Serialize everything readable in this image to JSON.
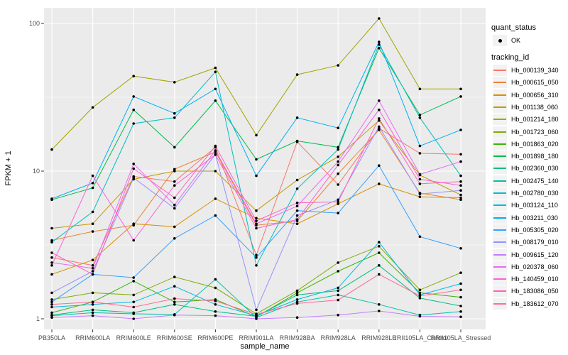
{
  "legend": {
    "quant_status_title": "quant_status",
    "quant_status_items": [
      {
        "label": "OK",
        "marker": "black-point"
      }
    ],
    "tracking_title": "tracking_id"
  },
  "chart_data": {
    "type": "line",
    "title": "",
    "xlabel": "sample_name",
    "ylabel": "FPKM + 1",
    "y_scale": "log10",
    "y_ticks": [
      "100",
      "10",
      "1"
    ],
    "y_tick_values": [
      100,
      10,
      1
    ],
    "ylim": [
      1,
      127
    ],
    "grid": "major+minor white on grey panel",
    "panel_color": "#ebebeb",
    "point_color": "#000000",
    "legend_position": "right",
    "categories": [
      "PB350LA",
      "RRIM600LA",
      "RRIM600LE",
      "RRIM600SE",
      "RRIM600PE",
      "RRIM901LA",
      "RRIM928BA",
      "RRIM928LA",
      "RRIM928LE",
      "RRII105LA_Control",
      "RRII105LA_Stressed"
    ],
    "series": [
      {
        "name": "Hb_000139_340",
        "color": "#F8766D",
        "values": [
          2.6,
          2.3,
          9.2,
          8.5,
          14.5,
          2.7,
          15.8,
          8.1,
          19.5,
          13.2,
          13.0
        ]
      },
      {
        "name": "Hb_000615_050",
        "color": "#EA8331",
        "values": [
          3.4,
          3.9,
          4.3,
          10.3,
          13.5,
          4.3,
          4.6,
          9.6,
          19.0,
          7.1,
          6.4
        ]
      },
      {
        "name": "Hb_000656_310",
        "color": "#D89000",
        "values": [
          2.0,
          2.5,
          4.4,
          4.2,
          6.5,
          4.8,
          4.4,
          6.0,
          8.2,
          6.7,
          6.6
        ]
      },
      {
        "name": "Hb_001138_060",
        "color": "#C09B00",
        "values": [
          4.1,
          4.4,
          8.8,
          10.0,
          10.0,
          5.4,
          8.7,
          12.5,
          22.0,
          9.4,
          6.9
        ]
      },
      {
        "name": "Hb_001214_180",
        "color": "#A3A500",
        "values": [
          14,
          27,
          44,
          40,
          50,
          17.5,
          45,
          52,
          108,
          36,
          36
        ]
      },
      {
        "name": "Hb_001723_060",
        "color": "#7CAE00",
        "values": [
          1.35,
          1.5,
          1.45,
          1.92,
          1.62,
          1.08,
          1.55,
          2.4,
          3.1,
          1.57,
          2.05
        ]
      },
      {
        "name": "Hb_001863_020",
        "color": "#39B600",
        "values": [
          1.1,
          1.3,
          1.8,
          1.3,
          1.35,
          1.03,
          1.5,
          2.1,
          2.8,
          1.5,
          1.4
        ]
      },
      {
        "name": "Hb_001898_180",
        "color": "#00BB4E",
        "values": [
          6.4,
          7.7,
          26,
          14.5,
          30,
          12,
          16,
          14.5,
          68,
          24,
          32
        ]
      },
      {
        "name": "Hb_002360_030",
        "color": "#00BF7D",
        "values": [
          1.06,
          1.15,
          1.1,
          1.25,
          1.12,
          1.04,
          1.45,
          1.55,
          2.3,
          1.38,
          1.22
        ]
      },
      {
        "name": "Hb_002475_140",
        "color": "#00C1A3",
        "values": [
          1.05,
          1.1,
          1.08,
          1.07,
          1.85,
          1.02,
          1.3,
          1.45,
          1.25,
          1.06,
          1.12
        ]
      },
      {
        "name": "Hb_002780_030",
        "color": "#00BFC4",
        "values": [
          3.3,
          5.3,
          21,
          23,
          47,
          2.3,
          7.6,
          14,
          72,
          23,
          9.3
        ]
      },
      {
        "name": "Hb_003124_110",
        "color": "#00BAE0",
        "values": [
          1.2,
          1.25,
          1.3,
          1.66,
          1.25,
          1.05,
          1.35,
          1.62,
          3.3,
          1.45,
          1.73
        ]
      },
      {
        "name": "Hb_003211_030",
        "color": "#00B0F6",
        "values": [
          6.5,
          8.3,
          32,
          24.6,
          36,
          9.3,
          23,
          19.6,
          75,
          14.8,
          19
        ]
      },
      {
        "name": "Hb_005305_020",
        "color": "#35A2FF",
        "values": [
          1.3,
          2.0,
          1.9,
          3.5,
          5.0,
          2.6,
          5.4,
          5.2,
          10.9,
          3.6,
          3.0
        ]
      },
      {
        "name": "Hb_008179_010",
        "color": "#9590FF",
        "values": [
          1.5,
          2.1,
          9.0,
          5.6,
          13,
          1.15,
          5.0,
          6.4,
          20,
          7.0,
          7.4
        ]
      },
      {
        "name": "Hb_009615_120",
        "color": "#C77CFF",
        "values": [
          1.02,
          1.05,
          1.0,
          1.06,
          1.05,
          1.0,
          1.02,
          1.06,
          1.13,
          1.04,
          1.03
        ]
      },
      {
        "name": "Hb_020378_060",
        "color": "#E76BF3",
        "values": [
          2.4,
          2.2,
          11.2,
          5.9,
          13.8,
          4.4,
          5.8,
          11.6,
          30,
          9.5,
          11.6
        ]
      },
      {
        "name": "Hb_140459_010",
        "color": "#FA62DB",
        "values": [
          2.3,
          9.3,
          3.4,
          8.0,
          12.9,
          4.1,
          4.7,
          11.0,
          26,
          8.8,
          8.0
        ]
      },
      {
        "name": "Hb_183086_050",
        "color": "#FF62BC",
        "values": [
          2.8,
          2.0,
          10.4,
          6.6,
          14.8,
          4.6,
          6.1,
          6.2,
          22.7,
          8.2,
          8.5
        ]
      },
      {
        "name": "Hb_183612_070",
        "color": "#FF6A98",
        "values": [
          1.25,
          1.3,
          1.2,
          1.37,
          1.32,
          1.07,
          1.27,
          1.34,
          2.0,
          1.43,
          1.57
        ]
      }
    ]
  }
}
